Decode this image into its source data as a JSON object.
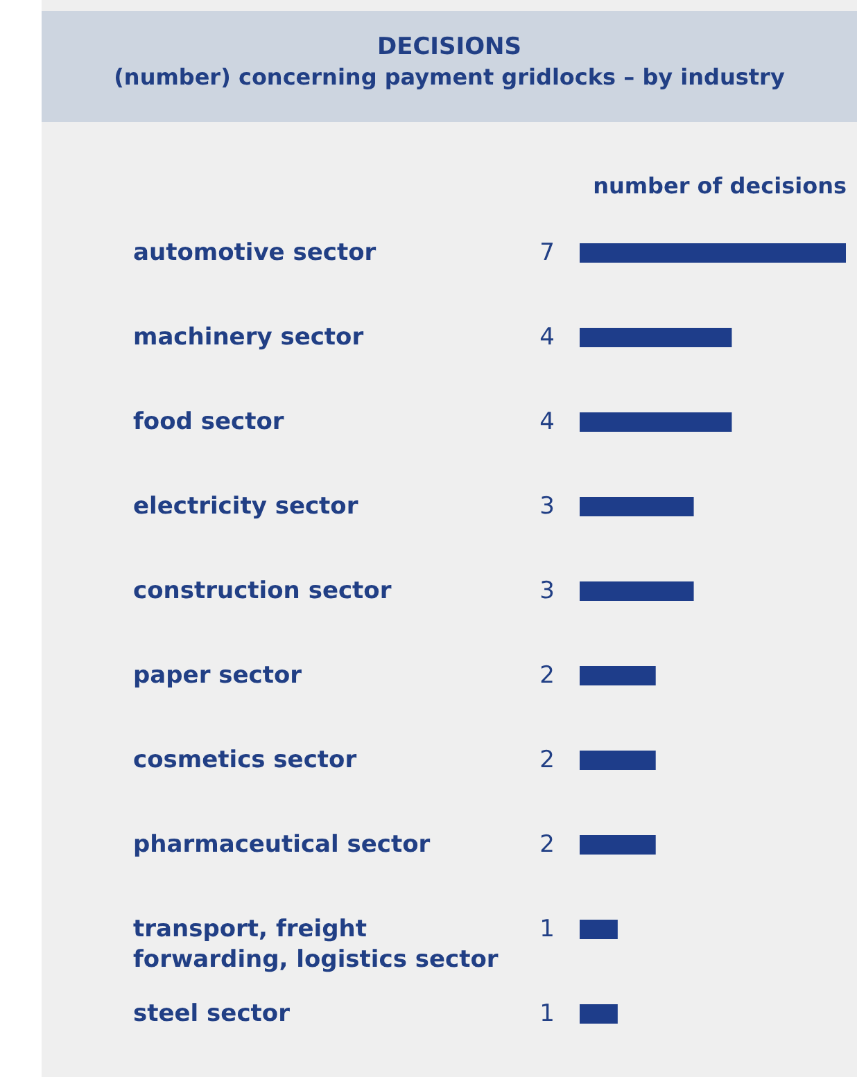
{
  "chart_data": {
    "type": "bar",
    "orientation": "horizontal",
    "title": "DECISIONS",
    "subtitle": "(number) concerning payment gridlocks – by industry",
    "xlabel": "number of decisions",
    "categories": [
      "automotive sector",
      "machinery sector",
      "food sector",
      "electricity sector",
      "construction sector",
      "paper sector",
      "cosmetics sector",
      "pharmaceutical sector",
      "transport, freight forwarding, logistics sector",
      "steel sector"
    ],
    "values": [
      7,
      4,
      4,
      3,
      3,
      2,
      2,
      2,
      1,
      1
    ],
    "color": "#1e3d8a",
    "data_labels": true,
    "tick_labels": "y"
  }
}
